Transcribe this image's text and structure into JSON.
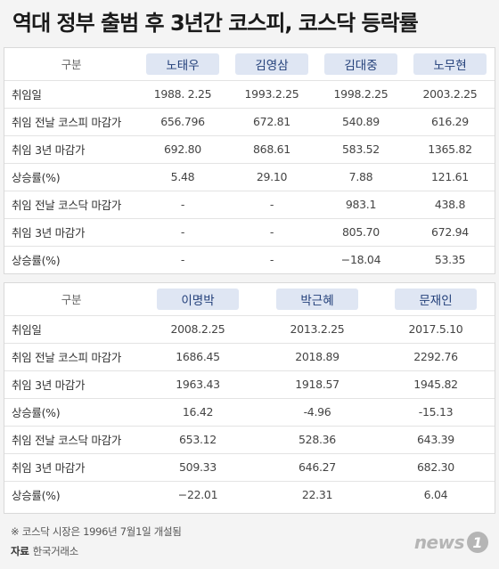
{
  "title": "역대 정부 출범 후 3년간 코스피, 코스닥 등락률",
  "table1": {
    "header_label": "구분",
    "presidents": [
      "노태우",
      "김영삼",
      "김대중",
      "노무현"
    ],
    "rows": [
      {
        "label": "취임일",
        "values": [
          "1988. 2.25",
          "1993.2.25",
          "1998.2.25",
          "2003.2.25"
        ]
      },
      {
        "label": "취임 전날 코스피 마감가",
        "values": [
          "656.796",
          "672.81",
          "540.89",
          "616.29"
        ]
      },
      {
        "label": "취임 3년 마감가",
        "values": [
          "692.80",
          "868.61",
          "583.52",
          "1365.82"
        ]
      },
      {
        "label": "상승률(%)",
        "values": [
          "5.48",
          "29.10",
          "7.88",
          "121.61"
        ]
      },
      {
        "label": "취임 전날 코스닥 마감가",
        "values": [
          "-",
          "-",
          "983.1",
          "438.8"
        ]
      },
      {
        "label": "취임 3년 마감가",
        "values": [
          "-",
          "-",
          "805.70",
          "672.94"
        ]
      },
      {
        "label": "상승률(%)",
        "values": [
          "-",
          "-",
          "−18.04",
          "53.35"
        ]
      }
    ]
  },
  "table2": {
    "header_label": "구분",
    "presidents": [
      "이명박",
      "박근혜",
      "문재인"
    ],
    "rows": [
      {
        "label": "취임일",
        "values": [
          "2008.2.25",
          "2013.2.25",
          "2017.5.10"
        ]
      },
      {
        "label": "취임 전날 코스피 마감가",
        "values": [
          "1686.45",
          "2018.89",
          "2292.76"
        ]
      },
      {
        "label": "취임 3년 마감가",
        "values": [
          "1963.43",
          "1918.57",
          "1945.82"
        ]
      },
      {
        "label": "상승률(%)",
        "values": [
          "16.42",
          "-4.96",
          "-15.13"
        ]
      },
      {
        "label": "취임 전날 코스닥 마감가",
        "values": [
          "653.12",
          "528.36",
          "643.39"
        ]
      },
      {
        "label": "취임 3년 마감가",
        "values": [
          "509.33",
          "646.27",
          "682.30"
        ]
      },
      {
        "label": "상승률(%)",
        "values": [
          "−22.01",
          "22.31",
          "6.04"
        ]
      }
    ]
  },
  "footnote": "※ 코스닥 시장은 1996년 7월1일 개설됨",
  "source_label": "자료",
  "source_value": "한국거래소",
  "logo": {
    "word": "news",
    "badge": "1"
  },
  "colors": {
    "chip_bg": "#dfe6f3",
    "chip_text": "#23407a",
    "background": "#f4f4f4",
    "logo": "#b5b5b5"
  }
}
